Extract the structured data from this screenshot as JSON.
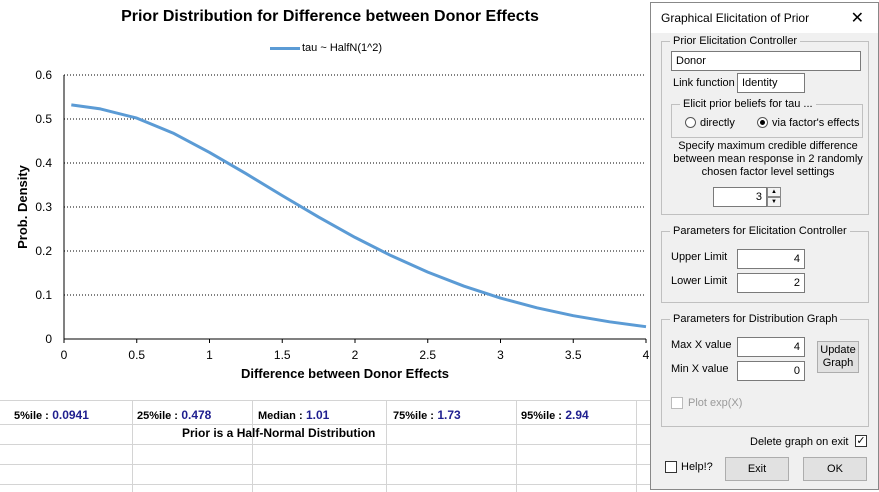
{
  "chart_data": {
    "type": "line",
    "title": "Prior Distribution for Difference between Donor Effects",
    "xlabel": "Difference between Donor Effects",
    "ylabel": "Prob. Density",
    "xlim": [
      0,
      4
    ],
    "ylim": [
      0,
      0.6
    ],
    "x_ticks": [
      "0",
      "0.5",
      "1",
      "1.5",
      "2",
      "2.5",
      "3",
      "3.5",
      "4"
    ],
    "y_ticks": [
      "0",
      "0.1",
      "0.2",
      "0.3",
      "0.4",
      "0.5",
      "0.6"
    ],
    "grid": "horizontal dotted",
    "legend": "top-center",
    "series": [
      {
        "name": "tau ~ HalfN(1^2)",
        "color": "#5b9bd5",
        "x": [
          0.05,
          0.25,
          0.5,
          0.75,
          1.0,
          1.25,
          1.5,
          1.75,
          2.0,
          2.25,
          2.5,
          2.75,
          3.0,
          3.25,
          3.5,
          3.75,
          4.0
        ],
        "y": [
          0.532,
          0.523,
          0.502,
          0.468,
          0.424,
          0.376,
          0.326,
          0.277,
          0.231,
          0.189,
          0.152,
          0.12,
          0.093,
          0.071,
          0.053,
          0.039,
          0.028
        ]
      }
    ]
  },
  "stats": {
    "p5_label": "5%ile :",
    "p5_value": "0.0941",
    "p25_label": "25%ile :",
    "p25_value": "0.478",
    "median_label": "Median :",
    "median_value": "1.01",
    "p75_label": "75%ile :",
    "p75_value": "1.73",
    "p95_label": "95%ile :",
    "p95_value": "2.94",
    "note": "Prior is a Half-Normal Distribution"
  },
  "dialog": {
    "title": "Graphical Elicitation of Prior",
    "controller": {
      "legend": "Prior Elicitation Controller",
      "factor_name": "Donor",
      "link_label": "Link function",
      "link_value": "Identity",
      "elicit_legend": "Elicit prior beliefs for tau ...",
      "radio_directly": "directly",
      "radio_factor": "via factor's effects",
      "instruction": "Specify maximum credible difference between mean response in 2 randomly chosen factor level settings",
      "spin_value": "3"
    },
    "params": {
      "legend": "Parameters for Elicitation Controller",
      "upper_label": "Upper Limit",
      "upper_value": "4",
      "lower_label": "Lower Limit",
      "lower_value": "2"
    },
    "graph": {
      "legend": "Parameters for Distribution Graph",
      "maxx_label": "Max X value",
      "maxx_value": "4",
      "minx_label": "Min X value",
      "minx_value": "0",
      "update_label": "Update Graph",
      "plot_exp_label": "Plot exp(X)"
    },
    "delete_label": "Delete graph on exit",
    "help_label": "Help!?",
    "exit_label": "Exit",
    "ok_label": "OK"
  }
}
